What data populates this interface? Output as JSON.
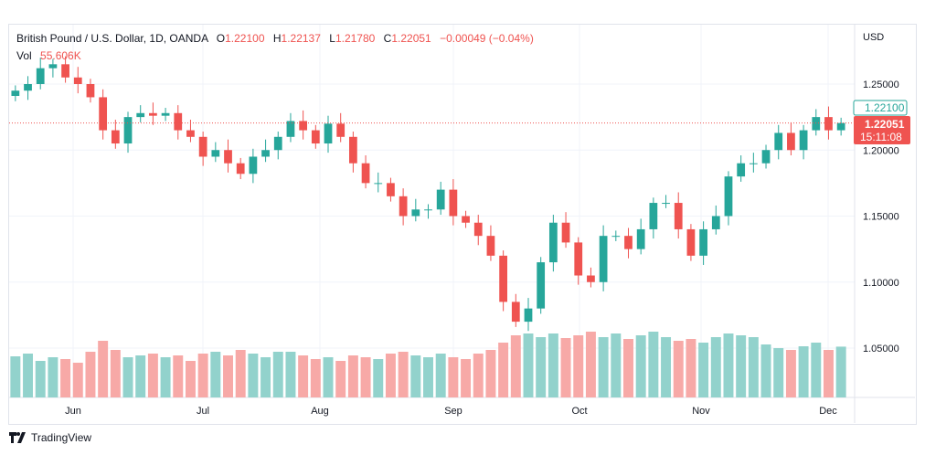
{
  "legend": {
    "title": "British Pound / U.S. Dollar, 1D, OANDA",
    "open_label": "O",
    "open": "1.22100",
    "high_label": "H",
    "high": "1.22137",
    "low_label": "L",
    "low": "1.21780",
    "close_label": "C",
    "close": "1.22051",
    "change": "−0.00049 (−0.04%)",
    "vol_label": "Vol",
    "vol": "55.606K"
  },
  "currency": "USD",
  "price_axis": [
    "1.25000",
    "1.20000",
    "1.15000",
    "1.10000",
    "1.05000"
  ],
  "open_price_tag": "1.22100",
  "last_price_tag": "1.22051",
  "countdown": "15:11:08",
  "months": [
    "Jun",
    "Jul",
    "Aug",
    "Sep",
    "Oct",
    "Nov",
    "Dec"
  ],
  "brand": "TradingView",
  "colors": {
    "up": "#26a69a",
    "down": "#ef5350",
    "vol_up": "#92d2cc",
    "vol_down": "#f7a9a7"
  },
  "chart_data": {
    "type": "candlestick",
    "ylim": [
      1.03,
      1.27
    ],
    "closes": [
      1.245,
      1.25,
      1.262,
      1.265,
      1.255,
      1.25,
      1.24,
      1.215,
      1.205,
      1.225,
      1.228,
      1.226,
      1.228,
      1.215,
      1.21,
      1.195,
      1.2,
      1.19,
      1.182,
      1.195,
      1.2,
      1.21,
      1.222,
      1.215,
      1.205,
      1.22,
      1.21,
      1.19,
      1.175,
      1.175,
      1.165,
      1.15,
      1.155,
      1.155,
      1.17,
      1.15,
      1.145,
      1.135,
      1.12,
      1.085,
      1.07,
      1.08,
      1.115,
      1.145,
      1.13,
      1.105,
      1.1,
      1.135,
      1.135,
      1.125,
      1.14,
      1.16,
      1.16,
      1.14,
      1.12,
      1.14,
      1.15,
      1.18,
      1.19,
      1.19,
      1.2,
      1.213,
      1.2,
      1.215,
      1.225,
      1.215,
      1.2205
    ],
    "volumes": [
      45,
      48,
      40,
      44,
      42,
      38,
      50,
      62,
      52,
      44,
      46,
      48,
      44,
      46,
      40,
      48,
      50,
      46,
      52,
      48,
      44,
      50,
      50,
      46,
      42,
      44,
      40,
      46,
      44,
      42,
      48,
      50,
      46,
      44,
      48,
      44,
      42,
      48,
      52,
      60,
      68,
      70,
      66,
      70,
      65,
      68,
      72,
      66,
      70,
      64,
      68,
      72,
      66,
      62,
      64,
      60,
      66,
      70,
      68,
      66,
      58,
      54,
      52,
      56,
      60,
      52,
      55.6
    ]
  }
}
